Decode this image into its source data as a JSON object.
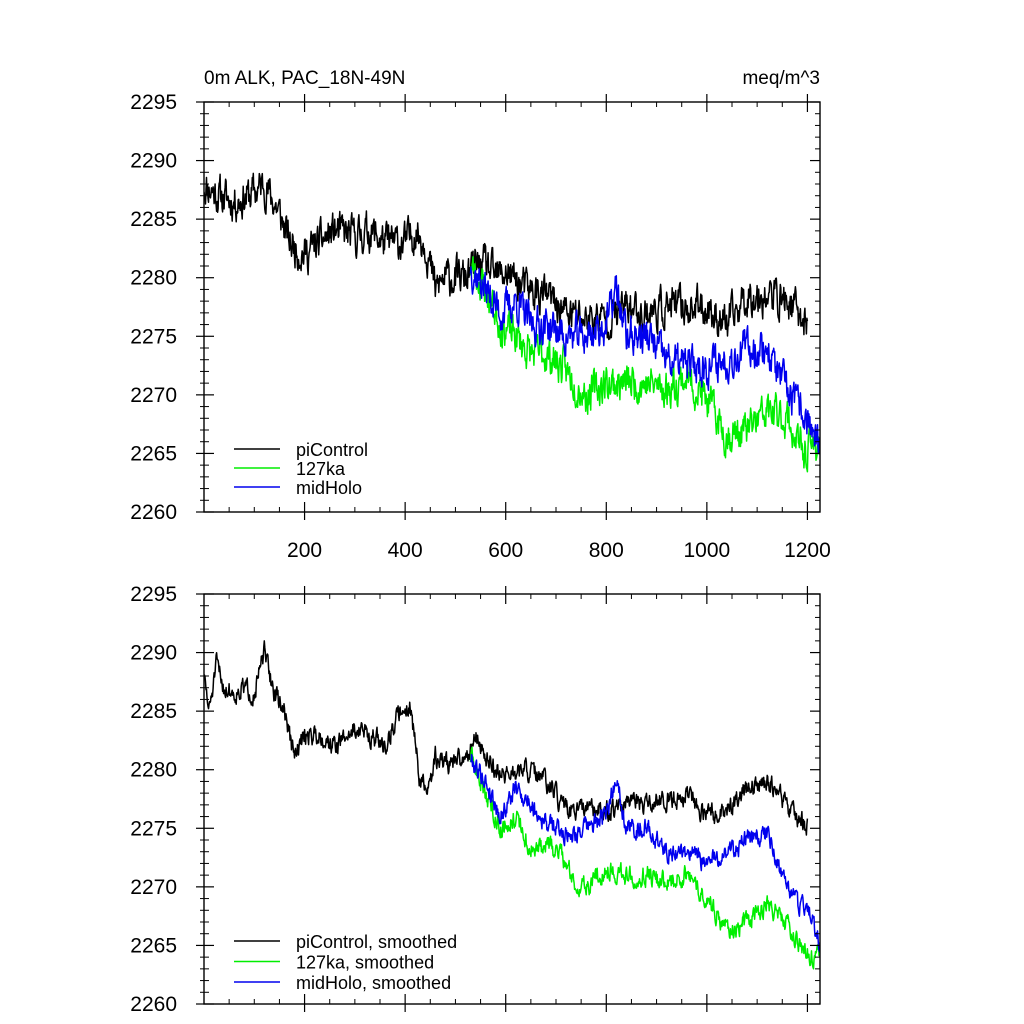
{
  "chart_data": [
    {
      "type": "line",
      "title_left": "0m ALK, PAC_18N-49N",
      "title_right": "meq/m^3",
      "xlabel": "",
      "ylabel": "",
      "xlim": [
        0,
        1225
      ],
      "ylim": [
        2260,
        2295
      ],
      "xticks": [
        200,
        400,
        600,
        800,
        1000,
        1200
      ],
      "xtick_labels": [
        "200",
        "400",
        "600",
        "800",
        "1000",
        "1200"
      ],
      "yticks": [
        2260,
        2265,
        2270,
        2275,
        2280,
        2285,
        2290,
        2295
      ],
      "ytick_labels": [
        "2260",
        "2265",
        "2270",
        "2275",
        "2280",
        "2285",
        "2290",
        "2295"
      ],
      "legend_position": "bottom-left",
      "series": [
        {
          "name": "piControl",
          "color": "#000000",
          "x_start": 0,
          "x_end": 1200,
          "anchors": [
            [
              0,
              2288
            ],
            [
              30,
              2287
            ],
            [
              60,
              2286.5
            ],
            [
              90,
              2287
            ],
            [
              120,
              2288
            ],
            [
              150,
              2285.5
            ],
            [
              170,
              2283
            ],
            [
              200,
              2282
            ],
            [
              230,
              2283
            ],
            [
              260,
              2284
            ],
            [
              300,
              2283.5
            ],
            [
              330,
              2284
            ],
            [
              360,
              2283
            ],
            [
              400,
              2283
            ],
            [
              420,
              2284
            ],
            [
              440,
              2283
            ],
            [
              460,
              2279
            ],
            [
              480,
              2280
            ],
            [
              500,
              2280
            ],
            [
              520,
              2280
            ],
            [
              540,
              2281
            ],
            [
              560,
              2281
            ],
            [
              580,
              2280
            ],
            [
              600,
              2280.5
            ],
            [
              640,
              2279
            ],
            [
              680,
              2278.5
            ],
            [
              720,
              2277
            ],
            [
              760,
              2276.5
            ],
            [
              800,
              2276.5
            ],
            [
              840,
              2277.5
            ],
            [
              880,
              2277
            ],
            [
              920,
              2277.5
            ],
            [
              960,
              2277.5
            ],
            [
              1000,
              2277.5
            ],
            [
              1040,
              2276
            ],
            [
              1080,
              2278.5
            ],
            [
              1120,
              2278.5
            ],
            [
              1160,
              2278
            ],
            [
              1200,
              2276
            ]
          ],
          "noise": 2.6,
          "seed": 11
        },
        {
          "name": "127ka",
          "color": "#00ee00",
          "x_start": 530,
          "x_end": 1225,
          "anchors": [
            [
              530,
              2281
            ],
            [
              560,
              2279
            ],
            [
              590,
              2276
            ],
            [
              620,
              2275
            ],
            [
              650,
              2273.5
            ],
            [
              680,
              2273.5
            ],
            [
              710,
              2272.5
            ],
            [
              740,
              2271
            ],
            [
              760,
              2270
            ],
            [
              800,
              2271
            ],
            [
              840,
              2271
            ],
            [
              880,
              2271
            ],
            [
              920,
              2270.5
            ],
            [
              960,
              2271.5
            ],
            [
              1000,
              2269.5
            ],
            [
              1040,
              2266.5
            ],
            [
              1080,
              2267
            ],
            [
              1120,
              2268.5
            ],
            [
              1160,
              2268
            ],
            [
              1190,
              2265
            ],
            [
              1225,
              2266
            ]
          ],
          "noise": 2.6,
          "seed": 23
        },
        {
          "name": "midHolo",
          "color": "#0000ee",
          "x_start": 530,
          "x_end": 1225,
          "anchors": [
            [
              530,
              2281
            ],
            [
              560,
              2279
            ],
            [
              590,
              2277
            ],
            [
              620,
              2278
            ],
            [
              650,
              2276
            ],
            [
              680,
              2276
            ],
            [
              720,
              2275
            ],
            [
              760,
              2275
            ],
            [
              800,
              2276
            ],
            [
              820,
              2279
            ],
            [
              840,
              2275
            ],
            [
              880,
              2275
            ],
            [
              920,
              2273
            ],
            [
              960,
              2272.5
            ],
            [
              1000,
              2272.5
            ],
            [
              1040,
              2273
            ],
            [
              1080,
              2274
            ],
            [
              1120,
              2274
            ],
            [
              1150,
              2271
            ],
            [
              1180,
              2269
            ],
            [
              1200,
              2268
            ],
            [
              1225,
              2265
            ]
          ],
          "noise": 2.6,
          "seed": 37
        }
      ]
    },
    {
      "type": "line",
      "xlim": [
        0,
        1225
      ],
      "ylim": [
        2260,
        2295
      ],
      "xticks": [
        200,
        400,
        600,
        800,
        1000,
        1200
      ],
      "yticks": [
        2260,
        2265,
        2270,
        2275,
        2280,
        2285,
        2290,
        2295
      ],
      "ytick_labels": [
        "2260",
        "2265",
        "2270",
        "2275",
        "2280",
        "2285",
        "2290",
        "2295"
      ],
      "legend_position": "bottom-left",
      "series": [
        {
          "name": "piControl, smoothed",
          "color": "#000000",
          "x_start": 0,
          "x_end": 1200,
          "anchors": [
            [
              0,
              2288
            ],
            [
              10,
              2285
            ],
            [
              25,
              2289
            ],
            [
              40,
              2287
            ],
            [
              60,
              2286.5
            ],
            [
              80,
              2287
            ],
            [
              100,
              2286.5
            ],
            [
              120,
              2290
            ],
            [
              140,
              2286.5
            ],
            [
              160,
              2285
            ],
            [
              180,
              2281
            ],
            [
              200,
              2283
            ],
            [
              230,
              2283
            ],
            [
              260,
              2282
            ],
            [
              300,
              2283.5
            ],
            [
              330,
              2283
            ],
            [
              360,
              2282
            ],
            [
              390,
              2285
            ],
            [
              410,
              2285.5
            ],
            [
              430,
              2279
            ],
            [
              445,
              2278
            ],
            [
              460,
              2281
            ],
            [
              490,
              2280.5
            ],
            [
              520,
              2281
            ],
            [
              540,
              2283
            ],
            [
              560,
              2281
            ],
            [
              580,
              2280
            ],
            [
              610,
              2279.5
            ],
            [
              640,
              2280
            ],
            [
              680,
              2279
            ],
            [
              720,
              2276.5
            ],
            [
              760,
              2276.5
            ],
            [
              800,
              2276.5
            ],
            [
              840,
              2277
            ],
            [
              880,
              2277
            ],
            [
              920,
              2277.5
            ],
            [
              960,
              2278
            ],
            [
              1000,
              2276
            ],
            [
              1040,
              2276.5
            ],
            [
              1080,
              2278.5
            ],
            [
              1120,
              2279
            ],
            [
              1160,
              2277
            ],
            [
              1200,
              2275
            ]
          ],
          "noise": 1.4,
          "seed": 51
        },
        {
          "name": "127ka, smoothed",
          "color": "#00ee00",
          "x_start": 530,
          "x_end": 1225,
          "anchors": [
            [
              530,
              2281
            ],
            [
              560,
              2278
            ],
            [
              590,
              2275
            ],
            [
              620,
              2276
            ],
            [
              650,
              2273
            ],
            [
              680,
              2273.5
            ],
            [
              710,
              2273
            ],
            [
              740,
              2270
            ],
            [
              760,
              2270
            ],
            [
              800,
              2271.5
            ],
            [
              840,
              2271
            ],
            [
              880,
              2271
            ],
            [
              920,
              2270.5
            ],
            [
              960,
              2271
            ],
            [
              1000,
              2269
            ],
            [
              1040,
              2266.5
            ],
            [
              1080,
              2267
            ],
            [
              1120,
              2268.5
            ],
            [
              1160,
              2267
            ],
            [
              1190,
              2264.5
            ],
            [
              1225,
              2264
            ]
          ],
          "noise": 1.4,
          "seed": 63
        },
        {
          "name": "midHolo, smoothed",
          "color": "#0000ee",
          "x_start": 530,
          "x_end": 1225,
          "anchors": [
            [
              530,
              2281
            ],
            [
              560,
              2279
            ],
            [
              590,
              2276
            ],
            [
              620,
              2278.5
            ],
            [
              650,
              2277
            ],
            [
              680,
              2275.5
            ],
            [
              720,
              2274.5
            ],
            [
              760,
              2275
            ],
            [
              800,
              2276
            ],
            [
              820,
              2279.5
            ],
            [
              840,
              2275
            ],
            [
              880,
              2275
            ],
            [
              920,
              2273
            ],
            [
              960,
              2273
            ],
            [
              1000,
              2272
            ],
            [
              1040,
              2273
            ],
            [
              1080,
              2274
            ],
            [
              1120,
              2274.5
            ],
            [
              1150,
              2271
            ],
            [
              1180,
              2268.5
            ],
            [
              1200,
              2268.5
            ],
            [
              1225,
              2265
            ]
          ],
          "noise": 1.4,
          "seed": 79
        }
      ]
    }
  ]
}
